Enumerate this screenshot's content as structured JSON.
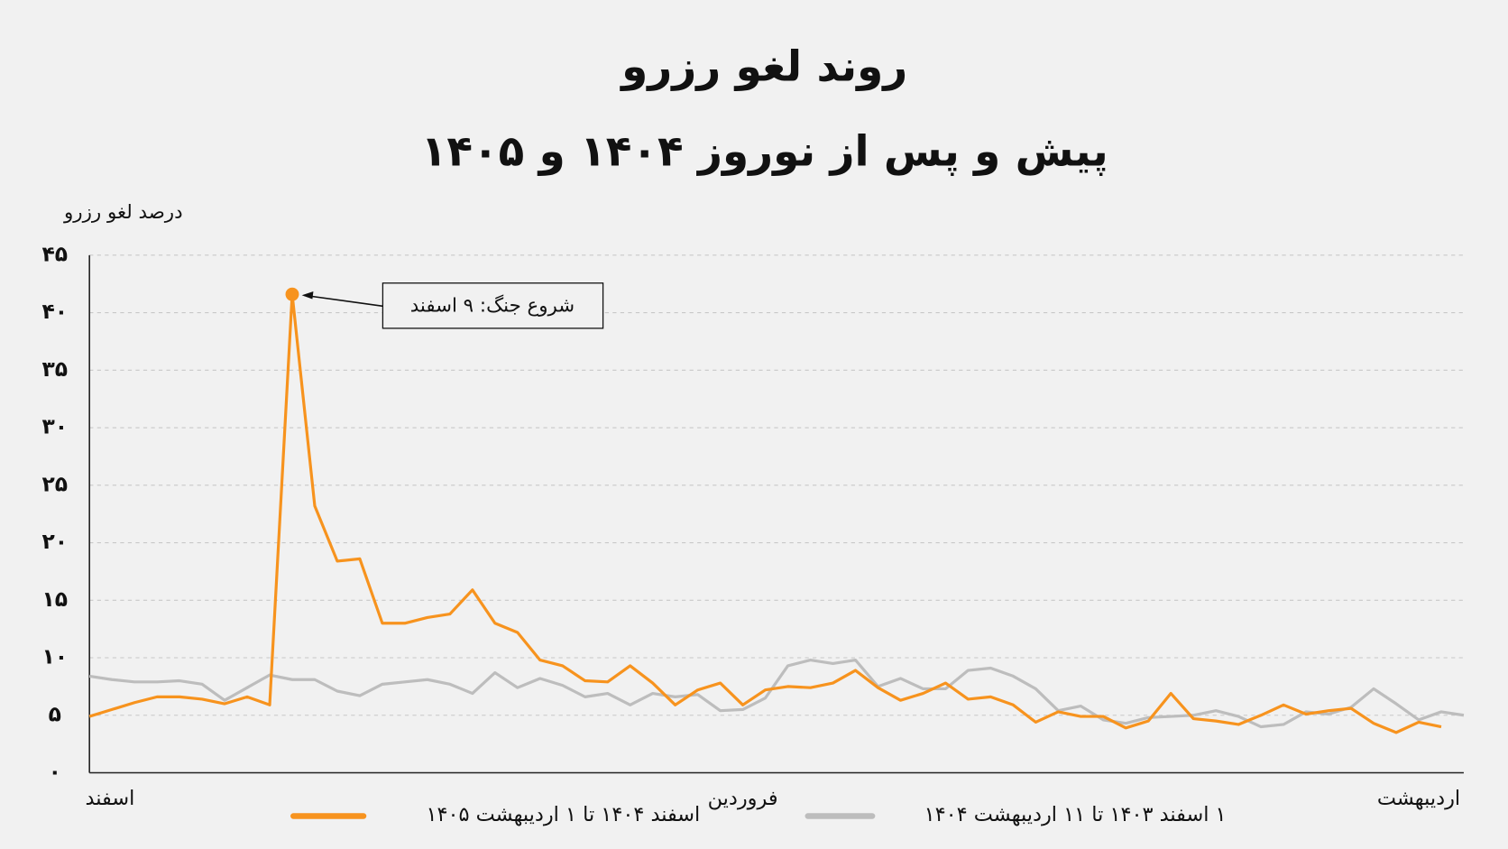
{
  "chart_data": {
    "type": "line",
    "title": "روند لغو رزرو",
    "subtitle": "پیش و پس از نوروز ۱۴۰۴ و ۱۴۰۵",
    "y_label": "درصد لغو رزرو",
    "annotation": {
      "text": "شروع جنگ: ۹ اسفند",
      "series": 0,
      "index": 9
    },
    "categories": [
      "اسفند",
      null,
      null,
      null,
      null,
      null,
      null,
      null,
      null,
      null,
      null,
      null,
      null,
      null,
      null,
      null,
      null,
      null,
      null,
      null,
      null,
      null,
      null,
      null,
      null,
      null,
      null,
      null,
      null,
      "فروردین",
      null,
      null,
      null,
      null,
      null,
      null,
      null,
      null,
      null,
      null,
      null,
      null,
      null,
      null,
      null,
      null,
      null,
      null,
      null,
      null,
      null,
      null,
      null,
      null,
      null,
      null,
      null,
      null,
      null,
      "اردیبهشت",
      null,
      null
    ],
    "series": [
      {
        "name": "اسفند ۱۴۰۴ تا ۱ اردیبهشت ۱۴۰۵",
        "color": "#f7931e",
        "values": [
          4.9,
          5.5,
          6.1,
          6.6,
          6.6,
          6.4,
          6.0,
          6.6,
          5.9,
          41.6,
          23.2,
          18.4,
          18.6,
          13.0,
          13.0,
          13.5,
          13.8,
          15.9,
          13.0,
          12.2,
          9.8,
          9.3,
          8.0,
          7.9,
          9.3,
          7.8,
          5.9,
          7.2,
          7.8,
          5.9,
          7.2,
          7.5,
          7.4,
          7.8,
          8.9,
          7.4,
          6.3,
          6.9,
          7.8,
          6.4,
          6.6,
          5.9,
          4.4,
          5.3,
          4.9,
          4.9,
          3.9,
          4.5,
          6.9,
          4.7,
          4.5,
          4.2,
          5.0,
          5.9,
          5.1,
          5.4,
          5.6,
          4.3,
          3.5,
          4.4,
          4.0,
          null
        ]
      },
      {
        "name": "۱ اسفند ۱۴۰۳ تا ۱۱ اردیبهشت ۱۴۰۴",
        "color": "#bdbdbd",
        "values": [
          8.4,
          8.1,
          7.9,
          7.9,
          8.0,
          7.7,
          6.3,
          7.4,
          8.5,
          8.1,
          8.1,
          7.1,
          6.7,
          7.7,
          7.9,
          8.1,
          7.7,
          6.9,
          8.7,
          7.4,
          8.2,
          7.6,
          6.6,
          6.9,
          5.9,
          6.9,
          6.6,
          6.8,
          5.4,
          5.5,
          6.5,
          9.3,
          9.8,
          9.5,
          9.8,
          7.5,
          8.2,
          7.3,
          7.3,
          8.9,
          9.1,
          8.4,
          7.3,
          5.4,
          5.8,
          4.6,
          4.3,
          4.8,
          4.9,
          5.0,
          5.4,
          4.9,
          4.0,
          4.2,
          5.3,
          5.1,
          5.7,
          7.3,
          6.0,
          4.6,
          5.3,
          5.0
        ]
      }
    ],
    "ylim": [
      0,
      45
    ],
    "yticks": [
      {
        "value": 0,
        "label": "۰"
      },
      {
        "value": 5,
        "label": "۵"
      },
      {
        "value": 10,
        "label": "۱۰"
      },
      {
        "value": 15,
        "label": "۱۵"
      },
      {
        "value": 20,
        "label": "۲۰"
      },
      {
        "value": 25,
        "label": "۲۵"
      },
      {
        "value": 30,
        "label": "۳۰"
      },
      {
        "value": 35,
        "label": "۳۵"
      },
      {
        "value": 40,
        "label": "۴۰"
      },
      {
        "value": 45,
        "label": "۴۵"
      }
    ],
    "grid": true
  }
}
